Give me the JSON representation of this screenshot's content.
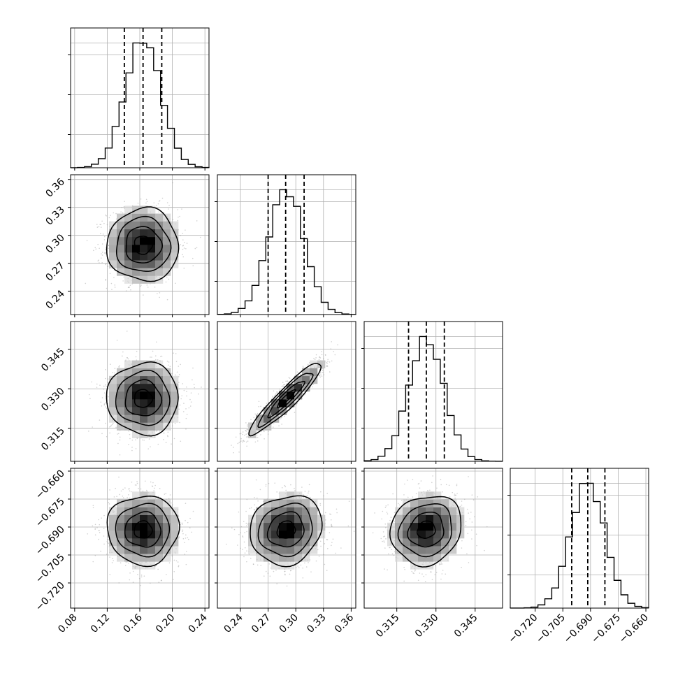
{
  "chart_data": {
    "type": "corner",
    "grid": true,
    "params": [
      {
        "ticks": [
          0.08,
          0.12,
          0.16,
          0.2,
          0.24
        ],
        "tick_labels": [
          "0.08",
          "0.12",
          "0.16",
          "0.20",
          "0.24"
        ],
        "range": [
          0.075,
          0.245
        ],
        "quantiles": [
          0.141,
          0.164,
          0.187
        ],
        "mean": 0.164,
        "sd": 0.022
      },
      {
        "ticks": [
          0.24,
          0.27,
          0.3,
          0.33,
          0.36
        ],
        "tick_labels": [
          "0.24",
          "0.27",
          "0.30",
          "0.33",
          "0.36"
        ],
        "range": [
          0.215,
          0.365
        ],
        "quantiles": [
          0.27,
          0.289,
          0.309
        ],
        "mean": 0.2895,
        "sd": 0.0195
      },
      {
        "ticks": [
          0.315,
          0.33,
          0.345
        ],
        "tick_labels": [
          "0.315",
          "0.330",
          "0.345"
        ],
        "range": [
          0.3025,
          0.3555
        ],
        "quantiles": [
          0.3195,
          0.3263,
          0.3332
        ],
        "mean": 0.3263,
        "sd": 0.0068
      },
      {
        "ticks": [
          -0.72,
          -0.705,
          -0.69,
          -0.675,
          -0.66
        ],
        "tick_labels": [
          "−0.720",
          "−0.705",
          "−0.690",
          "−0.675",
          "−0.660"
        ],
        "range": [
          -0.7335,
          -0.6585
        ],
        "quantiles": [
          -0.7002,
          -0.6915,
          -0.6822
        ],
        "mean": -0.6915,
        "sd": 0.0093
      }
    ],
    "correlations": [
      [
        1.0,
        0.0,
        0.0,
        0.0
      ],
      [
        0.0,
        1.0,
        0.0,
        0.0
      ],
      [
        0.0,
        0.93,
        1.0,
        0.0
      ],
      [
        0.0,
        0.12,
        0.12,
        1.0
      ]
    ],
    "hist_bins": 20,
    "contour_levels_sigma": [
      0.5,
      1.0,
      1.5,
      2.0
    ]
  }
}
